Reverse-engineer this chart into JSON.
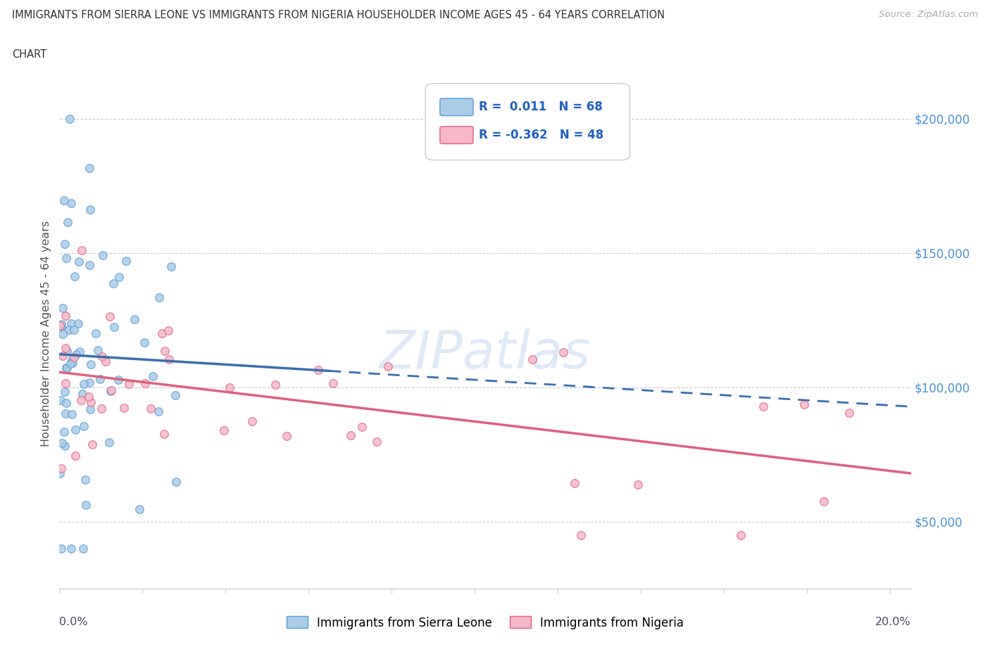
{
  "title_line1": "IMMIGRANTS FROM SIERRA LEONE VS IMMIGRANTS FROM NIGERIA HOUSEHOLDER INCOME AGES 45 - 64 YEARS CORRELATION",
  "title_line2": "CHART",
  "source": "Source: ZipAtlas.com",
  "ylabel": "Householder Income Ages 45 - 64 years",
  "ytick_vals": [
    50000,
    100000,
    150000,
    200000
  ],
  "xlim": [
    0.0,
    0.205
  ],
  "ylim": [
    25000,
    215000
  ],
  "sl_color_fill": "#a8cce8",
  "sl_color_edge": "#5b9bd5",
  "ng_color_fill": "#f4b8c8",
  "ng_color_edge": "#e06080",
  "trendline_sl_color": "#3a6fb0",
  "trendline_ng_color": "#e06080",
  "background_color": "#ffffff",
  "watermark": "ZIPatlas",
  "legend_sl": "R =  0.011   N = 68",
  "legend_ng": "R = -0.362   N = 48",
  "sl_seed": 42,
  "ng_seed": 99
}
